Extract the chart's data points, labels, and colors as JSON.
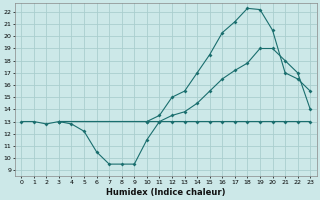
{
  "xlabel": "Humidex (Indice chaleur)",
  "bg_color": "#cce8e8",
  "grid_color": "#aacece",
  "line_color": "#1a6e6e",
  "xlim": [
    -0.5,
    23.5
  ],
  "ylim": [
    8.5,
    22.7
  ],
  "xticks": [
    0,
    1,
    2,
    3,
    4,
    5,
    6,
    7,
    8,
    9,
    10,
    11,
    12,
    13,
    14,
    15,
    16,
    17,
    18,
    19,
    20,
    21,
    22,
    23
  ],
  "yticks": [
    9,
    10,
    11,
    12,
    13,
    14,
    15,
    16,
    17,
    18,
    19,
    20,
    21,
    22
  ],
  "line1_x": [
    0,
    1,
    2,
    3,
    4,
    5,
    6,
    7,
    8,
    9,
    10,
    11,
    12,
    13,
    14,
    15,
    16,
    17,
    18,
    19,
    20,
    21,
    22,
    23
  ],
  "line1_y": [
    13,
    13,
    12.8,
    13,
    12.8,
    12.2,
    10.5,
    9.5,
    9.5,
    9.5,
    11.5,
    13,
    13,
    13,
    13,
    13,
    13,
    13,
    13,
    13,
    13,
    13,
    13,
    13
  ],
  "line2_x": [
    3,
    10,
    11,
    12,
    13,
    14,
    15,
    16,
    17,
    18,
    19,
    20,
    21,
    22,
    23
  ],
  "line2_y": [
    13,
    13,
    13.5,
    15.0,
    15.5,
    17.0,
    18.5,
    20.3,
    21.2,
    22.3,
    22.2,
    20.5,
    17.0,
    16.5,
    15.5
  ],
  "line3_x": [
    3,
    10,
    11,
    12,
    13,
    14,
    15,
    16,
    17,
    18,
    19,
    20,
    21,
    22,
    23
  ],
  "line3_y": [
    13,
    13,
    13,
    13.5,
    13.8,
    14.5,
    15.5,
    16.5,
    17.2,
    17.8,
    19.0,
    19.0,
    18.0,
    17.0,
    14.0
  ]
}
